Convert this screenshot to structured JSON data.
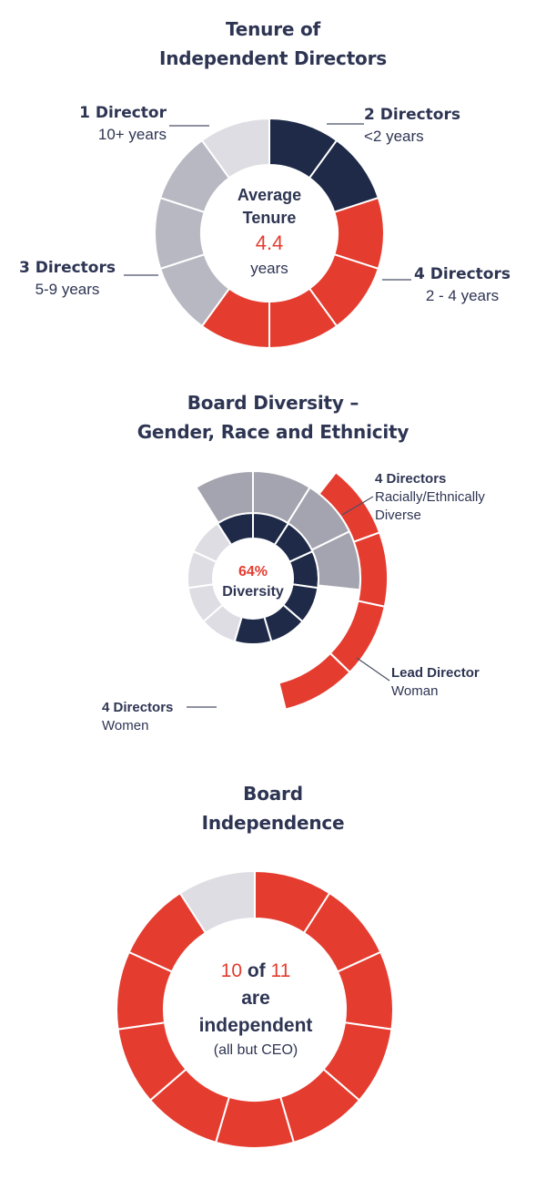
{
  "colors": {
    "navy": "#1e2a48",
    "red": "#e53c30",
    "grey": "#b8b8c2",
    "light": "#dddde3",
    "mid": "#a4a4b0",
    "text": "#2e3553"
  },
  "tenure": {
    "title_line1": "Tenure of",
    "title_line2": "Independent Directors",
    "center_line1": "Average",
    "center_line2": "Tenure",
    "center_value": "4.4",
    "center_unit": "years",
    "labels": {
      "ten_plus": {
        "count": "1 Director",
        "range": "10+ years"
      },
      "lt2": {
        "count": "2 Directors",
        "range": "<2 years"
      },
      "five_nine": {
        "count": "3 Directors",
        "range": "5-9 years"
      },
      "two_four": {
        "count": "4 Directors",
        "range": "2 - 4 years"
      }
    }
  },
  "diversity": {
    "title_line1": "Board Diversity –",
    "title_line2": "Gender, Race and Ethnicity",
    "center_value": "64%",
    "center_label": "Diversity",
    "labels": {
      "diverse": {
        "count": "4 Directors",
        "line2": "Racially/Ethnically",
        "line3": "Diverse"
      },
      "lead": {
        "count": "Lead Director",
        "line2": "Woman"
      },
      "women": {
        "count": "4 Directors",
        "line2": "Women"
      }
    }
  },
  "independence": {
    "title_line1": "Board",
    "title_line2": "Independence",
    "num_a": "10",
    "of_word": "of",
    "num_b": "11",
    "line2": "are",
    "line3": "independent",
    "line4": "(all but CEO)"
  },
  "chart_data": [
    {
      "type": "pie",
      "title": "Tenure of Independent Directors",
      "categories": [
        "<2 years",
        "2 - 4 years",
        "5-9 years",
        "10+ years"
      ],
      "values": [
        2,
        4,
        3,
        1
      ],
      "center_value": 4.4
    },
    {
      "type": "pie",
      "title": "Board Diversity – Gender, Race and Ethnicity",
      "categories": [
        "Racially/Ethnically Diverse",
        "Women"
      ],
      "values": [
        4,
        4
      ],
      "diversity_percent": 64
    },
    {
      "type": "pie",
      "title": "Board Independence",
      "categories": [
        "Independent",
        "Not independent"
      ],
      "values": [
        10,
        1
      ]
    }
  ]
}
